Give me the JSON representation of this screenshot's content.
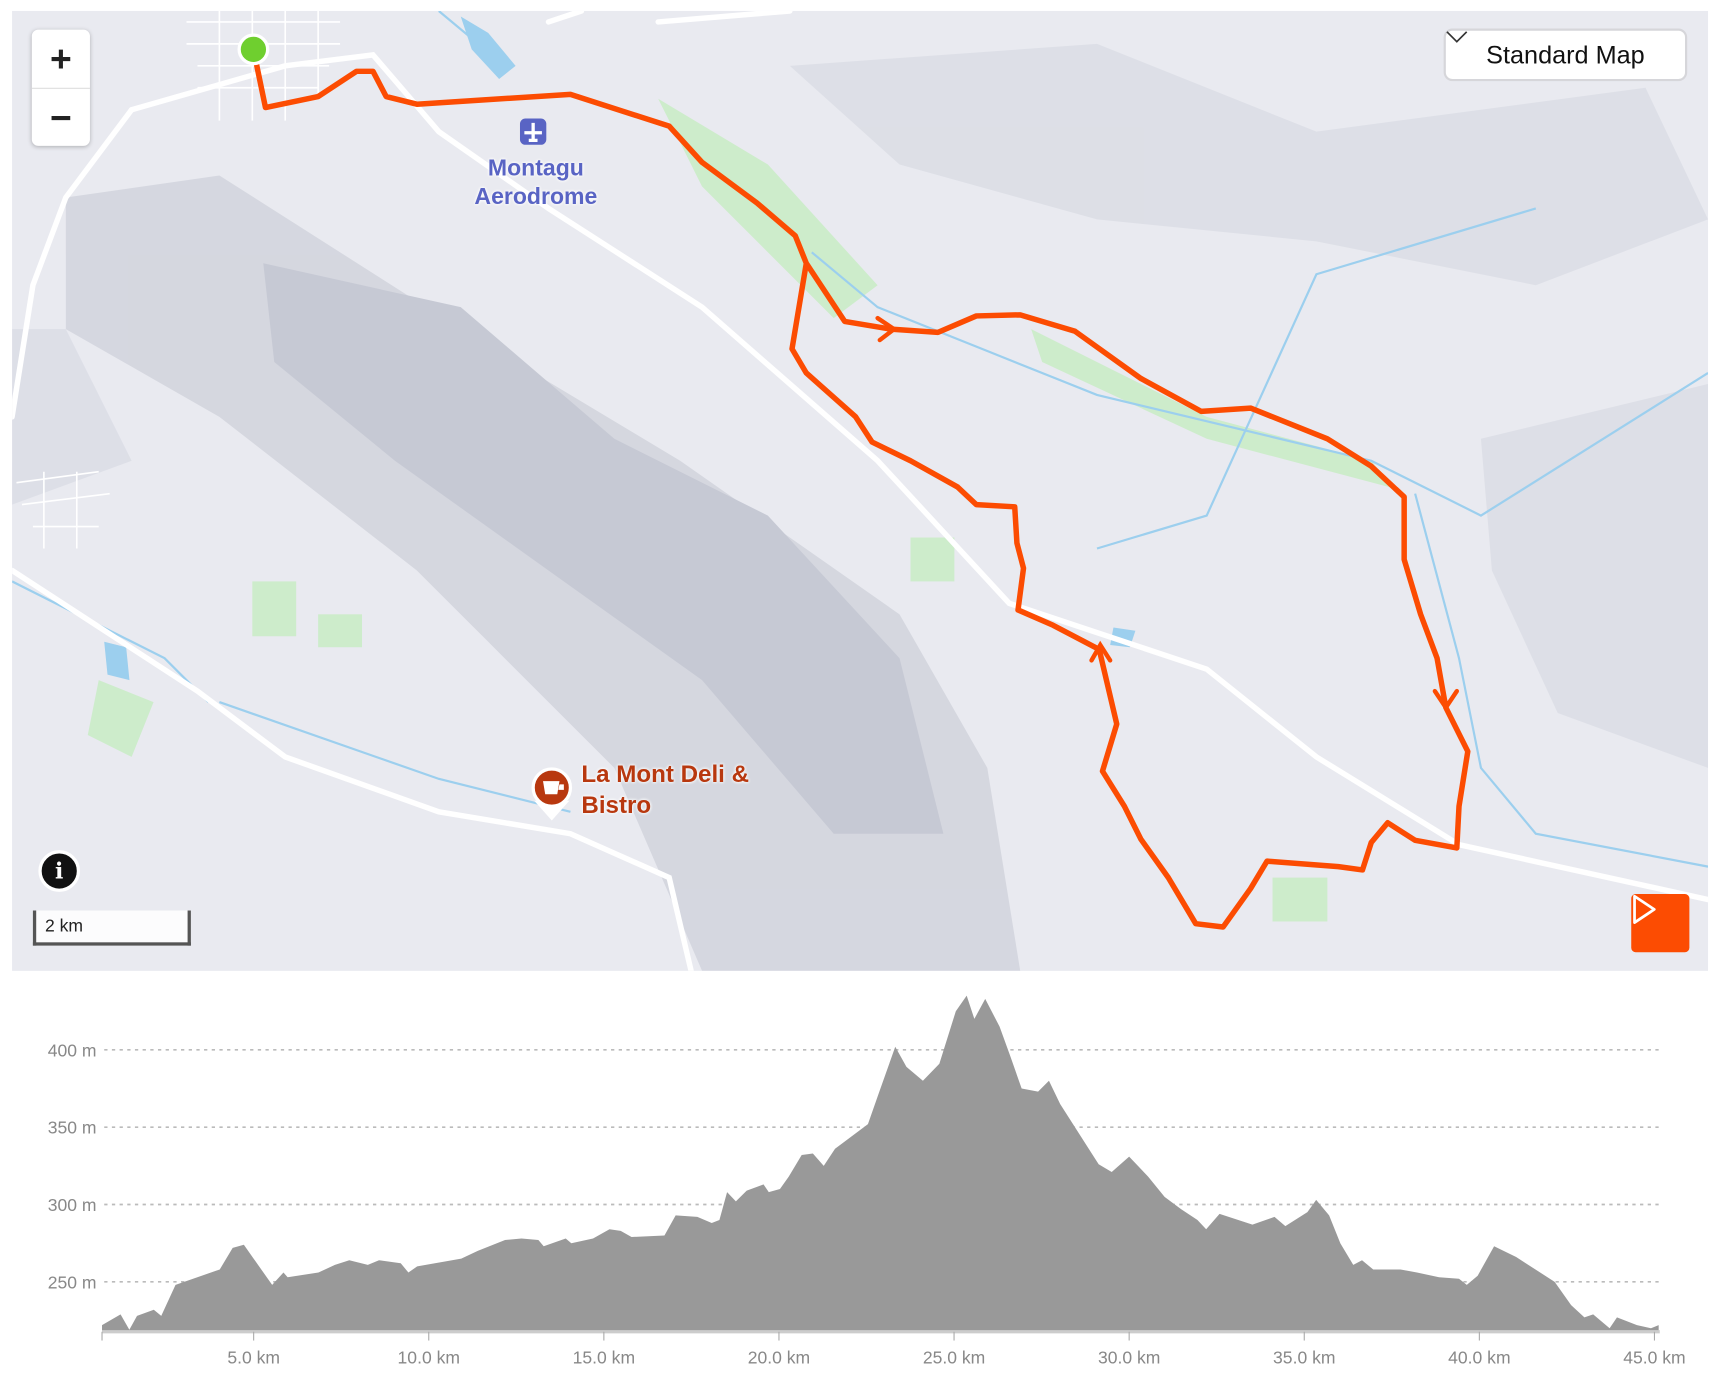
{
  "map": {
    "map_type": {
      "selected": "Standard Map",
      "icon": "chevron-down-icon"
    },
    "zoom_in_label": "+",
    "zoom_out_label": "−",
    "info_label": "i",
    "scale_label": "2 km",
    "places": [
      {
        "name": "Montagu Aerodrome",
        "icon": "airport-icon",
        "color": "#5964c4"
      },
      {
        "name": "La Mont Deli & Bistro",
        "icon": "coffee-icon",
        "color": "#b8380f"
      }
    ],
    "route_color": "#fc4c02",
    "start_color": "#6fcf2f",
    "play_icon": "play-icon"
  },
  "chart_data": {
    "type": "area",
    "xlabel": "",
    "ylabel": "",
    "xlim": [
      0.67,
      45.12
    ],
    "ylim": [
      218,
      440
    ],
    "grid": true,
    "color": "#999999",
    "x_ticks": [
      "5.0 km",
      "10.0 km",
      "15.0 km",
      "20.0 km",
      "25.0 km",
      "30.0 km",
      "35.0 km",
      "40.0 km",
      "45.0 km"
    ],
    "x_tick_values": [
      5,
      10,
      15,
      20,
      25,
      30,
      35,
      40,
      45
    ],
    "y_ticks": [
      "250 m",
      "300 m",
      "350 m",
      "400 m"
    ],
    "y_tick_values": [
      250,
      300,
      350,
      400
    ],
    "x": [
      0.67,
      1.2,
      1.45,
      1.67,
      2.15,
      2.36,
      2.77,
      4.03,
      4.4,
      4.72,
      5.53,
      5.85,
      5.97,
      6.85,
      7.32,
      7.73,
      8.26,
      8.58,
      9.2,
      9.42,
      9.67,
      10.93,
      11.4,
      12.18,
      12.65,
      13.13,
      13.28,
      13.91,
      14.07,
      14.69,
      15.16,
      15.48,
      15.79,
      16.73,
      17.05,
      17.67,
      18.08,
      18.3,
      18.52,
      18.77,
      19.08,
      19.56,
      19.71,
      20.03,
      20.28,
      20.65,
      20.97,
      21.28,
      21.6,
      22.54,
      22.85,
      23.32,
      23.64,
      24.11,
      24.58,
      25.05,
      25.36,
      25.58,
      25.89,
      26.3,
      26.62,
      26.93,
      27.4,
      27.71,
      28.03,
      28.65,
      29.13,
      29.5,
      30.0,
      30.54,
      31.01,
      31.48,
      31.95,
      32.2,
      32.58,
      33.52,
      34.15,
      34.46,
      35.09,
      35.34,
      35.71,
      36.03,
      36.4,
      36.65,
      36.97,
      37.75,
      38.22,
      38.85,
      39.42,
      39.64,
      39.95,
      40.42,
      41.05,
      42.15,
      42.62,
      43.0,
      43.25,
      43.72,
      43.93,
      44.5,
      44.9,
      45.12
    ],
    "y": [
      222,
      229,
      219,
      228,
      232,
      228,
      248,
      258,
      272,
      274,
      248,
      256,
      253,
      256,
      261,
      264,
      261,
      264,
      262,
      256,
      260,
      265,
      270,
      277,
      278,
      277,
      273,
      278,
      275,
      278,
      284,
      283,
      279,
      280,
      293,
      292,
      288,
      290,
      308,
      302,
      309,
      313,
      308,
      310,
      318,
      332,
      333,
      325,
      336,
      352,
      372,
      402,
      389,
      380,
      391,
      425,
      435,
      420,
      433,
      415,
      395,
      375,
      373,
      380,
      365,
      343,
      326,
      321,
      331,
      318,
      305,
      297,
      290,
      284,
      294,
      287,
      292,
      286,
      295,
      303,
      293,
      275,
      261,
      264,
      258,
      258,
      256,
      253,
      252,
      248,
      254,
      273,
      266,
      250,
      235,
      227,
      229,
      220,
      227,
      222,
      220,
      222
    ]
  }
}
